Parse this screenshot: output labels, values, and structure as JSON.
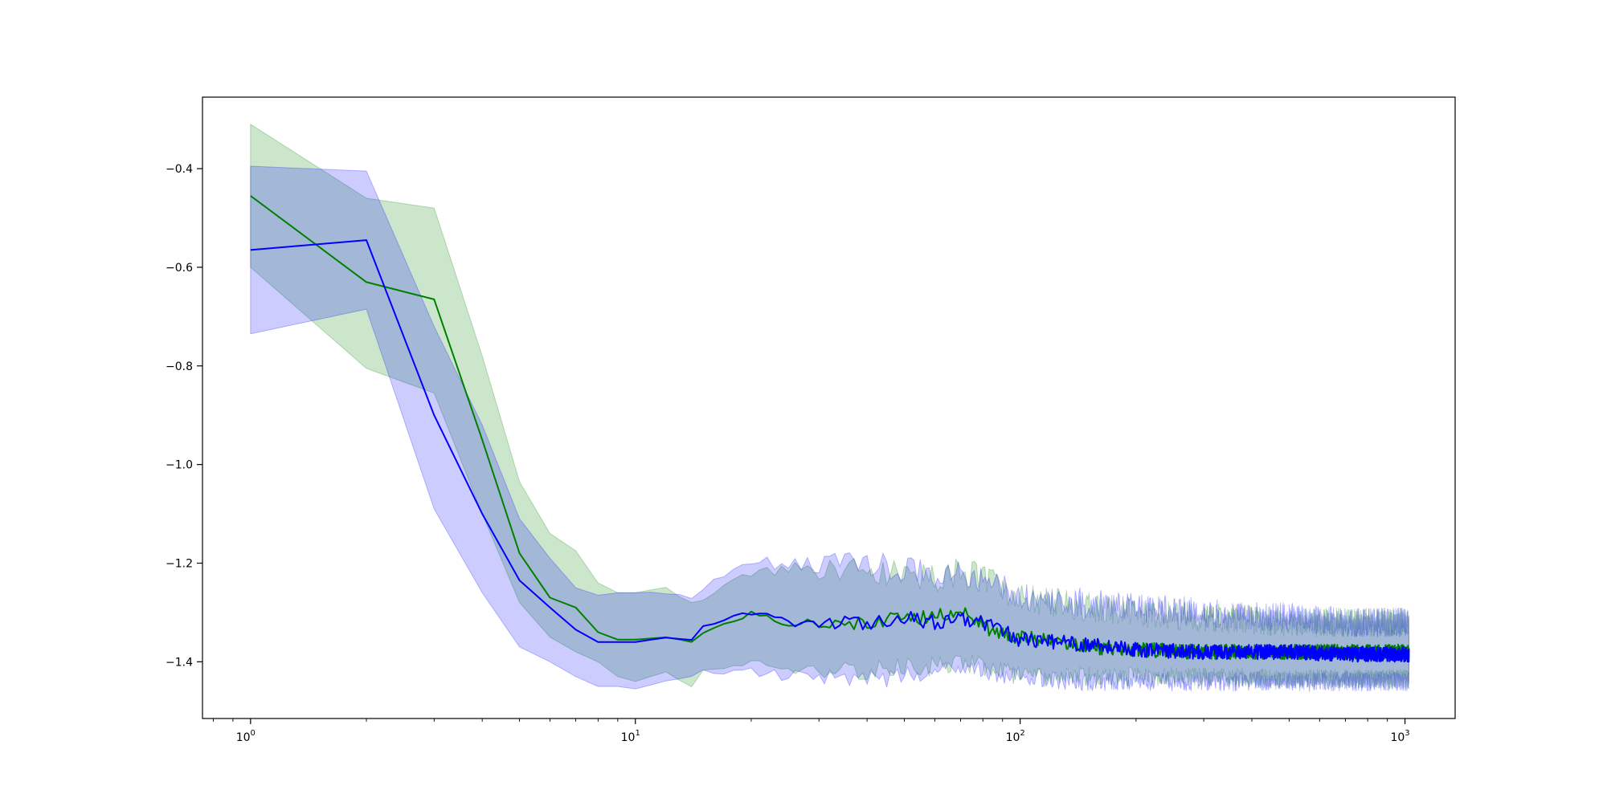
{
  "chart_data": {
    "type": "line",
    "title": "",
    "xlabel": "",
    "ylabel": "",
    "xscale": "log",
    "xlim": [
      0.75,
      1350
    ],
    "ylim": [
      -1.515,
      -0.255
    ],
    "grid": false,
    "legend": "none",
    "xticks": [
      {
        "base": "10",
        "exp": "0",
        "value": 1
      },
      {
        "base": "10",
        "exp": "1",
        "value": 10
      },
      {
        "base": "10",
        "exp": "2",
        "value": 100
      },
      {
        "base": "10",
        "exp": "3",
        "value": 1000
      }
    ],
    "yticks": [
      {
        "label": "−0.4",
        "value": -0.4
      },
      {
        "label": "−0.6",
        "value": -0.6
      },
      {
        "label": "−0.8",
        "value": -0.8
      },
      {
        "label": "−1.0",
        "value": -1.0
      },
      {
        "label": "−1.2",
        "value": -1.2
      },
      {
        "label": "−1.4",
        "value": -1.4
      }
    ],
    "series": [
      {
        "color": "#008000",
        "band_color": "#008000",
        "band_opacity": 0.2,
        "points": [
          [
            1,
            -0.455,
            -0.31,
            -0.6
          ],
          [
            2,
            -0.63,
            -0.46,
            -0.805
          ],
          [
            3,
            -0.665,
            -0.48,
            -0.855
          ],
          [
            4,
            -0.95,
            -0.78,
            -1.1
          ],
          [
            5,
            -1.18,
            -1.035,
            -1.28
          ],
          [
            6,
            -1.27,
            -1.14,
            -1.35
          ],
          [
            7,
            -1.29,
            -1.175,
            -1.38
          ],
          [
            8,
            -1.34,
            -1.24,
            -1.4
          ],
          [
            9,
            -1.355,
            -1.26,
            -1.43
          ],
          [
            10,
            -1.355,
            -1.26,
            -1.44
          ],
          [
            12,
            -1.35,
            -1.25,
            -1.42
          ],
          [
            14,
            -1.36,
            -1.28,
            -1.45
          ],
          [
            15,
            -1.34,
            -1.27,
            -1.42
          ],
          [
            20,
            -1.3,
            -1.22,
            -1.4
          ],
          [
            25,
            -1.32,
            -1.21,
            -1.41
          ],
          [
            30,
            -1.32,
            -1.22,
            -1.42
          ],
          [
            40,
            -1.32,
            -1.22,
            -1.42
          ],
          [
            50,
            -1.31,
            -1.22,
            -1.41
          ],
          [
            60,
            -1.31,
            -1.23,
            -1.41
          ],
          [
            70,
            -1.29,
            -1.22,
            -1.4
          ],
          [
            80,
            -1.33,
            -1.23,
            -1.41
          ],
          [
            100,
            -1.35,
            -1.27,
            -1.43
          ],
          [
            150,
            -1.37,
            -1.29,
            -1.43
          ],
          [
            200,
            -1.375,
            -1.3,
            -1.43
          ],
          [
            300,
            -1.38,
            -1.31,
            -1.43
          ],
          [
            500,
            -1.38,
            -1.32,
            -1.435
          ],
          [
            700,
            -1.38,
            -1.32,
            -1.435
          ],
          [
            1024,
            -1.38,
            -1.32,
            -1.435
          ]
        ]
      },
      {
        "color": "#0000ff",
        "band_color": "#0000ff",
        "band_opacity": 0.2,
        "points": [
          [
            1,
            -0.565,
            -0.395,
            -0.735
          ],
          [
            2,
            -0.545,
            -0.405,
            -0.685
          ],
          [
            3,
            -0.9,
            -0.72,
            -1.09
          ],
          [
            4,
            -1.1,
            -0.92,
            -1.26
          ],
          [
            5,
            -1.235,
            -1.11,
            -1.37
          ],
          [
            6,
            -1.29,
            -1.19,
            -1.4
          ],
          [
            7,
            -1.335,
            -1.25,
            -1.43
          ],
          [
            8,
            -1.36,
            -1.265,
            -1.45
          ],
          [
            9,
            -1.36,
            -1.26,
            -1.45
          ],
          [
            10,
            -1.36,
            -1.26,
            -1.455
          ],
          [
            12,
            -1.35,
            -1.26,
            -1.44
          ],
          [
            14,
            -1.355,
            -1.27,
            -1.43
          ],
          [
            15,
            -1.33,
            -1.25,
            -1.42
          ],
          [
            20,
            -1.3,
            -1.19,
            -1.42
          ],
          [
            25,
            -1.32,
            -1.21,
            -1.43
          ],
          [
            30,
            -1.32,
            -1.2,
            -1.43
          ],
          [
            40,
            -1.32,
            -1.2,
            -1.44
          ],
          [
            50,
            -1.31,
            -1.21,
            -1.43
          ],
          [
            60,
            -1.32,
            -1.22,
            -1.42
          ],
          [
            70,
            -1.31,
            -1.22,
            -1.41
          ],
          [
            80,
            -1.32,
            -1.23,
            -1.42
          ],
          [
            100,
            -1.355,
            -1.27,
            -1.43
          ],
          [
            150,
            -1.365,
            -1.28,
            -1.44
          ],
          [
            200,
            -1.375,
            -1.29,
            -1.44
          ],
          [
            300,
            -1.38,
            -1.3,
            -1.44
          ],
          [
            500,
            -1.38,
            -1.31,
            -1.44
          ],
          [
            700,
            -1.385,
            -1.32,
            -1.44
          ],
          [
            1024,
            -1.385,
            -1.32,
            -1.44
          ]
        ]
      }
    ]
  }
}
